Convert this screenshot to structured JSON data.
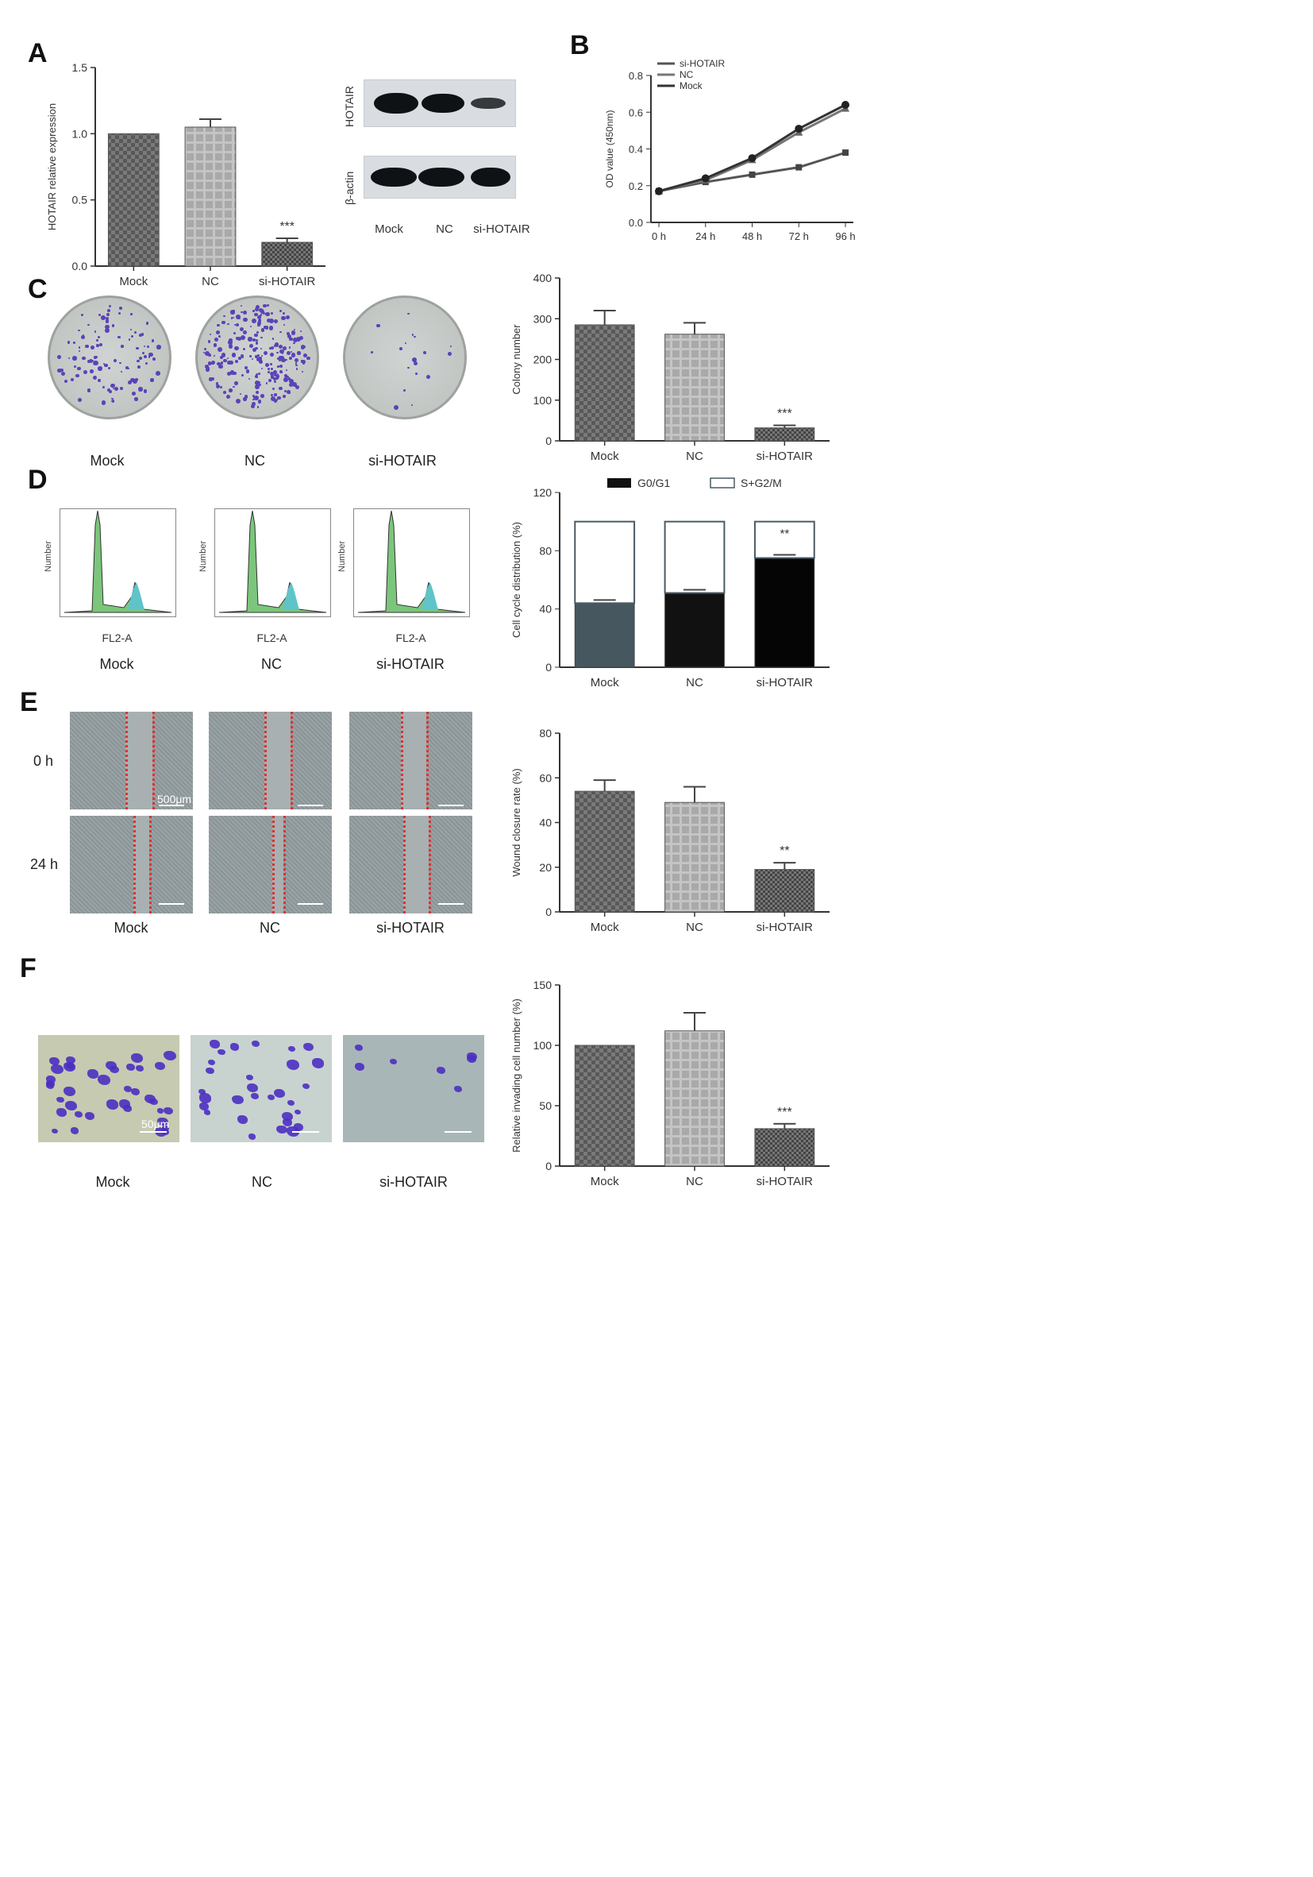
{
  "panels": {
    "A": {
      "letter": "A",
      "chart_data": {
        "type": "bar",
        "categories": [
          "Mock",
          "NC",
          "si-HOTAIR"
        ],
        "values": [
          1.0,
          1.05,
          0.18
        ],
        "errors": [
          0.0,
          0.06,
          0.03
        ],
        "significance": [
          "",
          "",
          "***"
        ],
        "ylabel": "HOTAIR relative expression",
        "yticks": [
          "0.0",
          "0.5",
          "1.0",
          "1.5"
        ],
        "ylim": [
          0,
          1.5
        ]
      },
      "blot": {
        "labels": [
          "HOTAIR",
          "β-actin"
        ],
        "lanes": [
          "Mock",
          "NC",
          "si-HOTAIR"
        ]
      }
    },
    "B": {
      "letter": "B",
      "chart_data": {
        "type": "line",
        "x": [
          "0 h",
          "24 h",
          "48 h",
          "72 h",
          "96 h"
        ],
        "ylabel": "OD value (450nm)",
        "yticks": [
          "0.0",
          "0.2",
          "0.4",
          "0.6",
          "0.8"
        ],
        "ylim": [
          0,
          0.8
        ],
        "legend_position": "top-left",
        "series": [
          {
            "name": "si-HOTAIR",
            "values": [
              0.17,
              0.22,
              0.26,
              0.3,
              0.38
            ]
          },
          {
            "name": "NC",
            "values": [
              0.17,
              0.23,
              0.34,
              0.49,
              0.62
            ]
          },
          {
            "name": "Mock",
            "values": [
              0.17,
              0.24,
              0.35,
              0.51,
              0.64
            ]
          }
        ]
      }
    },
    "C": {
      "letter": "C",
      "dish_labels": [
        "Mock",
        "NC",
        "si-HOTAIR"
      ],
      "chart_data": {
        "type": "bar",
        "categories": [
          "Mock",
          "NC",
          "si-HOTAIR"
        ],
        "values": [
          285,
          262,
          32
        ],
        "errors": [
          35,
          28,
          6
        ],
        "significance": [
          "",
          "",
          "***"
        ],
        "ylabel": "Colony number",
        "yticks": [
          "0",
          "100",
          "200",
          "300",
          "400"
        ],
        "ylim": [
          0,
          400
        ]
      }
    },
    "D": {
      "letter": "D",
      "flow": [
        {
          "caption": "Mock",
          "ylabel": "Number",
          "xlabel": "FL2-A"
        },
        {
          "caption": "NC",
          "ylabel": "Number",
          "xlabel": "FL2-A"
        },
        {
          "caption": "si-HOTAIR",
          "ylabel": "Number",
          "xlabel": "FL2-A"
        }
      ],
      "chart_data": {
        "type": "bar",
        "stacked": true,
        "categories": [
          "Mock",
          "NC",
          "si-HOTAIR"
        ],
        "series": [
          {
            "name": "G0/G1",
            "values": [
              44,
              51,
              75
            ]
          },
          {
            "name": "S+G2/M",
            "values": [
              56,
              49,
              25
            ]
          }
        ],
        "significance": [
          "",
          "",
          "**"
        ],
        "ylabel": "Cell cycle distribution (%)",
        "yticks": [
          "0",
          "40",
          "80",
          "120"
        ],
        "ylim": [
          0,
          120
        ]
      }
    },
    "E": {
      "letter": "E",
      "row_labels": [
        "0 h",
        "24 h"
      ],
      "captions": [
        "Mock",
        "NC",
        "si-HOTAIR"
      ],
      "scale_label": "500μm",
      "chart_data": {
        "type": "bar",
        "categories": [
          "Mock",
          "NC",
          "si-HOTAIR"
        ],
        "values": [
          54,
          49,
          19
        ],
        "errors": [
          5,
          7,
          3
        ],
        "significance": [
          "",
          "",
          "**"
        ],
        "ylabel": "Wound closure rate (%)",
        "yticks": [
          "0",
          "20",
          "40",
          "60",
          "80"
        ],
        "ylim": [
          0,
          80
        ]
      }
    },
    "F": {
      "letter": "F",
      "captions": [
        "Mock",
        "NC",
        "si-HOTAIR"
      ],
      "scale_label": "50μm",
      "chart_data": {
        "type": "bar",
        "categories": [
          "Mock",
          "NC",
          "si-HOTAIR"
        ],
        "values": [
          100,
          112,
          31
        ],
        "errors": [
          0,
          15,
          4
        ],
        "significance": [
          "",
          "",
          "***"
        ],
        "ylabel": "Relative invading cell number (%)",
        "yticks": [
          "0",
          "50",
          "100",
          "150"
        ],
        "ylim": [
          0,
          150
        ]
      }
    }
  }
}
